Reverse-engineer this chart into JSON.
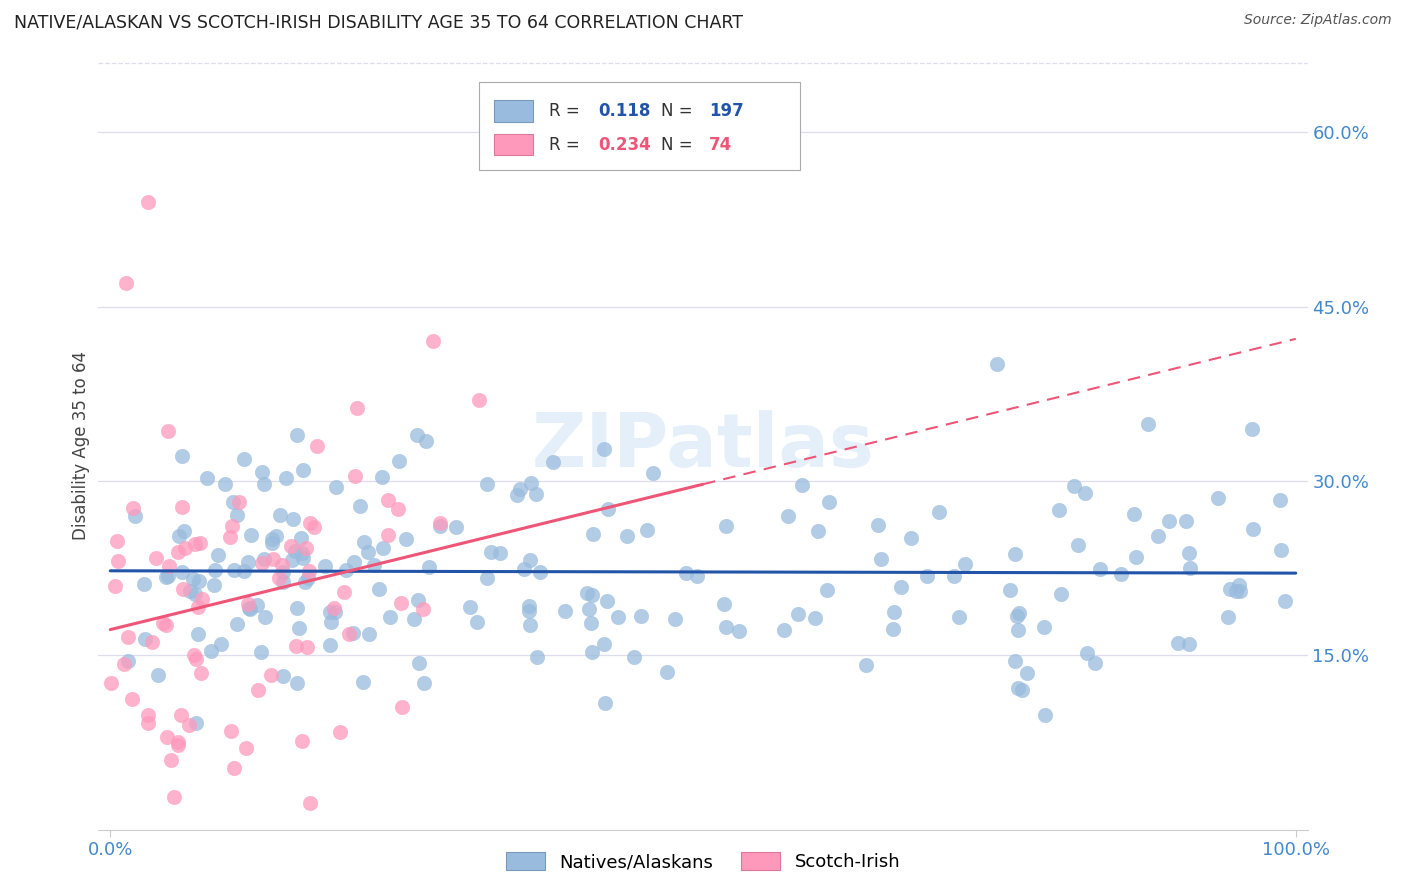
{
  "title": "NATIVE/ALASKAN VS SCOTCH-IRISH DISABILITY AGE 35 TO 64 CORRELATION CHART",
  "source": "Source: ZipAtlas.com",
  "ylabel": "Disability Age 35 to 64",
  "legend_label1": "Natives/Alaskans",
  "legend_label2": "Scotch-Irish",
  "R1": 0.118,
  "N1": 197,
  "R2": 0.234,
  "N2": 74,
  "color_blue": "#99BBDD",
  "color_pink": "#FF99BB",
  "color_blue_line": "#2255AA",
  "color_pink_line": "#EE5577",
  "color_tick": "#4488CC",
  "background": "#FFFFFF",
  "grid_color": "#DDDDEE",
  "ylim_low": 0.0,
  "ylim_high": 0.66,
  "yticks": [
    0.15,
    0.3,
    0.45,
    0.6
  ],
  "ytick_labels": [
    "15.0%",
    "30.0%",
    "45.0%",
    "60.0%"
  ]
}
